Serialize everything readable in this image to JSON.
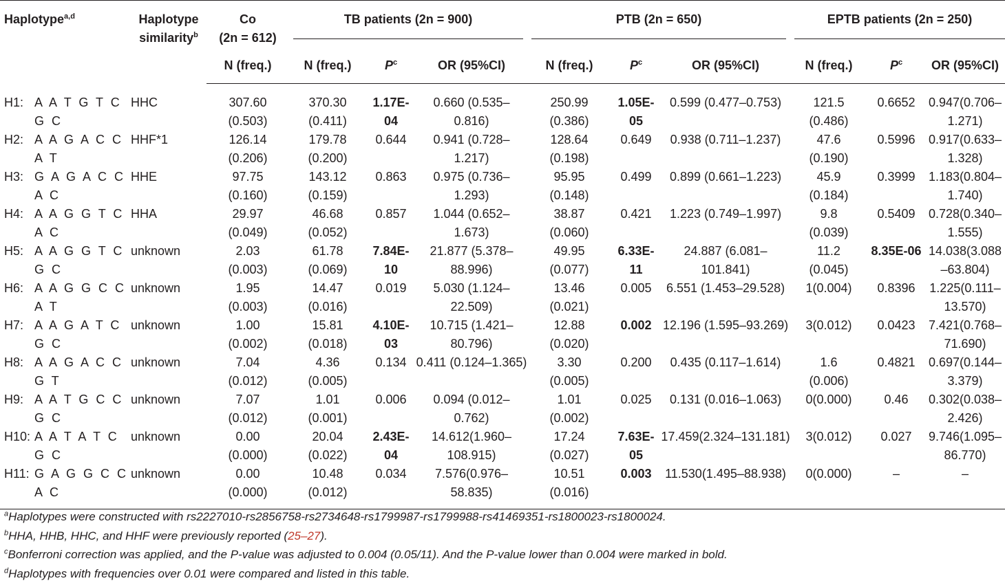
{
  "header": {
    "haplotype": "Haplotype",
    "haplotype_sup": "a,d",
    "similarity_line1": "Haplotype",
    "similarity_line2": "similarity",
    "similarity_sup": "b",
    "co_line1": "Co",
    "co_line2": "(2n = 612)",
    "co_sub": "N (freq.)",
    "tb_group": "TB patients (2n = 900)",
    "ptb_group": "PTB (2n = 650)",
    "eptb_group": "EPTB patients (2n = 250)",
    "n_freq": "N (freq.)",
    "p_label": "P",
    "p_sup": "c",
    "or_label": "OR (95%CI)"
  },
  "rows": [
    {
      "id": "H1:",
      "seq": "A A T G T C G C",
      "sim": "HHC",
      "co_n": "307.60",
      "co_f": "(0.503)",
      "tb_n": "370.30",
      "tb_f": "(0.411)",
      "tb_p": "1.17E-04",
      "tb_p_bold": true,
      "tb_or": "0.660 (0.535–0.816)",
      "ptb_n": "250.99",
      "ptb_f": "(0.386)",
      "ptb_p": "1.05E-05",
      "ptb_p_bold": true,
      "ptb_or": "0.599 (0.477–0.753)",
      "ep_n": "121.5",
      "ep_f": "(0.486)",
      "ep_p": "0.6652",
      "ep_p_bold": false,
      "ep_or": "0.947(0.706–1.271)"
    },
    {
      "id": "H2:",
      "seq": "A A G A C C A T",
      "sim": "HHF*1",
      "co_n": "126.14",
      "co_f": "(0.206)",
      "tb_n": "179.78",
      "tb_f": "(0.200)",
      "tb_p": "0.644",
      "tb_p_bold": false,
      "tb_or": "0.941 (0.728–1.217)",
      "ptb_n": "128.64",
      "ptb_f": "(0.198)",
      "ptb_p": "0.649",
      "ptb_p_bold": false,
      "ptb_or": "0.938 (0.711–1.237)",
      "ep_n": "47.6",
      "ep_f": "(0.190)",
      "ep_p": "0.5996",
      "ep_p_bold": false,
      "ep_or": "0.917(0.633–1.328)"
    },
    {
      "id": "H3:",
      "seq": "G A G A C C A C",
      "sim": "HHE",
      "co_n": "97.75",
      "co_f": "(0.160)",
      "tb_n": "143.12",
      "tb_f": "(0.159)",
      "tb_p": "0.863",
      "tb_p_bold": false,
      "tb_or": "0.975 (0.736–1.293)",
      "ptb_n": "95.95",
      "ptb_f": "(0.148)",
      "ptb_p": "0.499",
      "ptb_p_bold": false,
      "ptb_or": "0.899 (0.661–1.223)",
      "ep_n": "45.9",
      "ep_f": "(0.184)",
      "ep_p": "0.3999",
      "ep_p_bold": false,
      "ep_or": "1.183(0.804–1.740)"
    },
    {
      "id": "H4:",
      "seq": "A A G G T C A C",
      "sim": "HHA",
      "co_n": "29.97",
      "co_f": "(0.049)",
      "tb_n": "46.68",
      "tb_f": "(0.052)",
      "tb_p": "0.857",
      "tb_p_bold": false,
      "tb_or": "1.044 (0.652–1.673)",
      "ptb_n": "38.87",
      "ptb_f": "(0.060)",
      "ptb_p": "0.421",
      "ptb_p_bold": false,
      "ptb_or": "1.223 (0.749–1.997)",
      "ep_n": "9.8",
      "ep_f": "(0.039)",
      "ep_p": "0.5409",
      "ep_p_bold": false,
      "ep_or": "0.728(0.340–1.555)"
    },
    {
      "id": "H5:",
      "seq": "A A G G T C G C",
      "sim": "unknown",
      "co_n": "2.03",
      "co_f": "(0.003)",
      "tb_n": "61.78",
      "tb_f": "(0.069)",
      "tb_p": "7.84E-10",
      "tb_p_bold": true,
      "tb_or": "21.877 (5.378–88.996)",
      "ptb_n": "49.95",
      "ptb_f": "(0.077)",
      "ptb_p": "6.33E-11",
      "ptb_p_bold": true,
      "ptb_or": "24.887 (6.081–101.841)",
      "ep_n": "11.2",
      "ep_f": "(0.045)",
      "ep_p": "8.35E-06",
      "ep_p_bold": true,
      "ep_or": "14.038(3.088–63.804)"
    },
    {
      "id": "H6:",
      "seq": "A A G G C C A T",
      "sim": "unknown",
      "co_n": "1.95",
      "co_f": "(0.003)",
      "tb_n": "14.47",
      "tb_f": "(0.016)",
      "tb_p": "0.019",
      "tb_p_bold": false,
      "tb_or": "5.030 (1.124–22.509)",
      "ptb_n": "13.46",
      "ptb_f": "(0.021)",
      "ptb_p": "0.005",
      "ptb_p_bold": false,
      "ptb_or": "6.551 (1.453–29.528)",
      "ep_n": "1(0.004)",
      "ep_f": "",
      "ep_p": "0.8396",
      "ep_p_bold": false,
      "ep_or": "1.225(0.111–13.570)"
    },
    {
      "id": "H7:",
      "seq": "A A G A T C G C",
      "sim": "unknown",
      "co_n": "1.00",
      "co_f": "(0.002)",
      "tb_n": "15.81",
      "tb_f": "(0.018)",
      "tb_p": "4.10E-03",
      "tb_p_bold": true,
      "tb_or": "10.715 (1.421–80.796)",
      "ptb_n": "12.88",
      "ptb_f": "(0.020)",
      "ptb_p": "0.002",
      "ptb_p_bold": true,
      "ptb_or": "12.196 (1.595–93.269)",
      "ep_n": "3(0.012)",
      "ep_f": "",
      "ep_p": "0.0423",
      "ep_p_bold": false,
      "ep_or": "7.421(0.768–71.690)"
    },
    {
      "id": "H8:",
      "seq": "A A G A C C G T",
      "sim": "unknown",
      "co_n": "7.04",
      "co_f": "(0.012)",
      "tb_n": "4.36",
      "tb_f": "(0.005)",
      "tb_p": "0.134",
      "tb_p_bold": false,
      "tb_or": "0.411 (0.124–1.365)",
      "ptb_n": "3.30",
      "ptb_f": "(0.005)",
      "ptb_p": "0.200",
      "ptb_p_bold": false,
      "ptb_or": "0.435 (0.117–1.614)",
      "ep_n": "1.6",
      "ep_f": "(0.006)",
      "ep_p": "0.4821",
      "ep_p_bold": false,
      "ep_or": "0.697(0.144–3.379)"
    },
    {
      "id": "H9:",
      "seq": "A A T G C C G C",
      "sim": "unknown",
      "co_n": "7.07",
      "co_f": "(0.012)",
      "tb_n": "1.01",
      "tb_f": "(0.001)",
      "tb_p": "0.006",
      "tb_p_bold": false,
      "tb_or": "0.094 (0.012–0.762)",
      "ptb_n": "1.01",
      "ptb_f": "(0.002)",
      "ptb_p": "0.025",
      "ptb_p_bold": false,
      "ptb_or": "0.131 (0.016–1.063)",
      "ep_n": "0(0.000)",
      "ep_f": "",
      "ep_p": "0.46",
      "ep_p_bold": false,
      "ep_or": "0.302(0.038–2.426)"
    },
    {
      "id": "H10:",
      "seq": "A A T A T C G C",
      "sim": "unknown",
      "co_n": "0.00",
      "co_f": "(0.000)",
      "tb_n": "20.04",
      "tb_f": "(0.022)",
      "tb_p": "2.43E-04",
      "tb_p_bold": true,
      "tb_or": "14.612(1.960–108.915)",
      "ptb_n": "17.24",
      "ptb_f": "(0.027)",
      "ptb_p": "7.63E-05",
      "ptb_p_bold": true,
      "ptb_or": "17.459(2.324–131.181)",
      "ep_n": "3(0.012)",
      "ep_f": "",
      "ep_p": "0.027",
      "ep_p_bold": false,
      "ep_or": "9.746(1.095–86.770)"
    },
    {
      "id": "H11:",
      "seq": "G A G G C C A C",
      "sim": "unknown",
      "co_n": "0.00",
      "co_f": "(0.000)",
      "tb_n": "10.48",
      "tb_f": "(0.012)",
      "tb_p": "0.034",
      "tb_p_bold": false,
      "tb_or": "7.576(0.976–58.835)",
      "ptb_n": "10.51",
      "ptb_f": "(0.016)",
      "ptb_p": "0.003",
      "ptb_p_bold": true,
      "ptb_or": "11.530(1.495–88.938)",
      "ep_n": "0(0.000)",
      "ep_f": "",
      "ep_p": "–",
      "ep_p_bold": false,
      "ep_or": "–"
    }
  ],
  "footnotes": {
    "a_sup": "a",
    "a_text": "Haplotypes were constructed with rs2227010-rs2856758-rs2734648-rs1799987-rs1799988-rs41469351-rs1800023-rs1800024.",
    "b_sup": "b",
    "b_text_before": "HHA, HHB, HHC, and HHF were previously reported (",
    "b_ref": "25–27",
    "b_text_after": ").",
    "c_sup": "c",
    "c_text": "Bonferroni correction was applied, and the P-value was adjusted to 0.004 (0.05/11). And the P-value lower than 0.004 were marked in bold.",
    "d_sup": "d",
    "d_text": "Haplotypes with frequencies over 0.01 were compared and listed in this table."
  }
}
